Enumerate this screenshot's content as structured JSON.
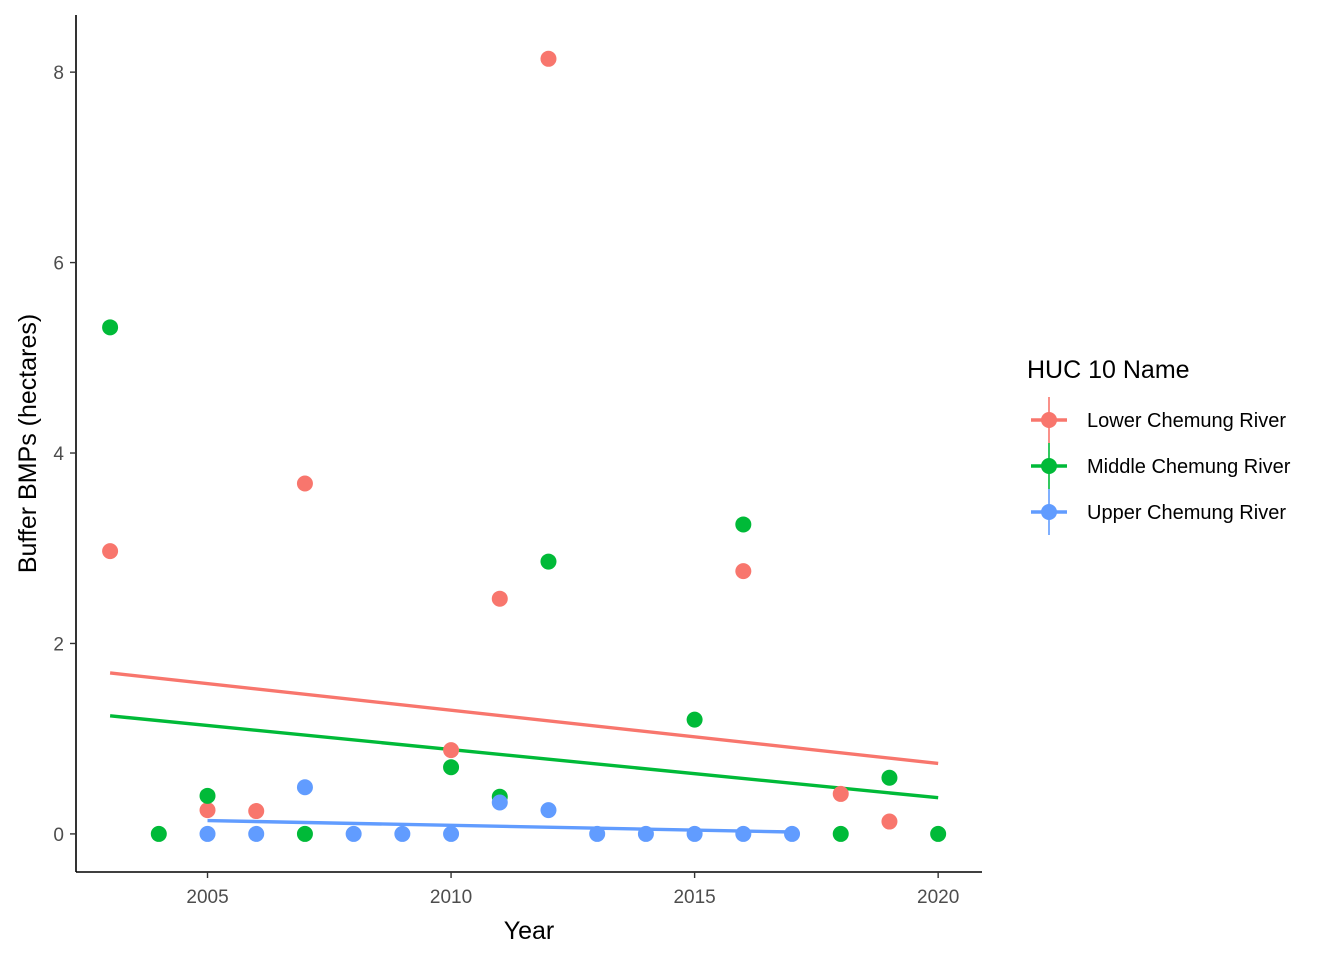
{
  "chart_data": {
    "type": "scatter",
    "title": "",
    "xlabel": "Year",
    "ylabel": "Buffer BMPs (hectares)",
    "xlim": [
      2002.3,
      2020.9
    ],
    "ylim": [
      -0.4,
      8.6
    ],
    "x_ticks": [
      2005,
      2010,
      2015,
      2020
    ],
    "y_ticks": [
      0,
      2,
      4,
      6,
      8
    ],
    "grid": false,
    "legend_title": "HUC 10 Name",
    "legend_position": "right",
    "series": [
      {
        "name": "Lower Chemung River",
        "color": "#F8766D",
        "points": [
          {
            "x": 2003,
            "y": 2.97
          },
          {
            "x": 2005,
            "y": 0.25
          },
          {
            "x": 2006,
            "y": 0.24
          },
          {
            "x": 2007,
            "y": 3.68
          },
          {
            "x": 2010,
            "y": 0.88
          },
          {
            "x": 2011,
            "y": 2.47
          },
          {
            "x": 2012,
            "y": 8.14
          },
          {
            "x": 2016,
            "y": 2.76
          },
          {
            "x": 2018,
            "y": 0.42
          },
          {
            "x": 2019,
            "y": 0.13
          }
        ],
        "trend": {
          "x": [
            2003,
            2020
          ],
          "y": [
            1.69,
            0.74
          ]
        }
      },
      {
        "name": "Middle Chemung River",
        "color": "#00BA38",
        "points": [
          {
            "x": 2003,
            "y": 5.32
          },
          {
            "x": 2004,
            "y": 0.0
          },
          {
            "x": 2005,
            "y": 0.4
          },
          {
            "x": 2007,
            "y": 0.0
          },
          {
            "x": 2010,
            "y": 0.7
          },
          {
            "x": 2011,
            "y": 0.39
          },
          {
            "x": 2012,
            "y": 2.86
          },
          {
            "x": 2015,
            "y": 1.2
          },
          {
            "x": 2016,
            "y": 3.25
          },
          {
            "x": 2018,
            "y": 0.0
          },
          {
            "x": 2019,
            "y": 0.59
          },
          {
            "x": 2020,
            "y": 0.0
          }
        ],
        "trend": {
          "x": [
            2003,
            2020
          ],
          "y": [
            1.24,
            0.38
          ]
        }
      },
      {
        "name": "Upper Chemung River",
        "color": "#619CFF",
        "points": [
          {
            "x": 2005,
            "y": 0.0
          },
          {
            "x": 2006,
            "y": 0.0
          },
          {
            "x": 2007,
            "y": 0.49
          },
          {
            "x": 2008,
            "y": 0.0
          },
          {
            "x": 2009,
            "y": 0.0
          },
          {
            "x": 2010,
            "y": 0.0
          },
          {
            "x": 2011,
            "y": 0.33
          },
          {
            "x": 2012,
            "y": 0.25
          },
          {
            "x": 2013,
            "y": 0.0
          },
          {
            "x": 2014,
            "y": 0.0
          },
          {
            "x": 2015,
            "y": 0.0
          },
          {
            "x": 2016,
            "y": 0.0
          },
          {
            "x": 2017,
            "y": 0.0
          }
        ],
        "trend": {
          "x": [
            2005,
            2017
          ],
          "y": [
            0.14,
            0.02
          ]
        }
      }
    ]
  }
}
